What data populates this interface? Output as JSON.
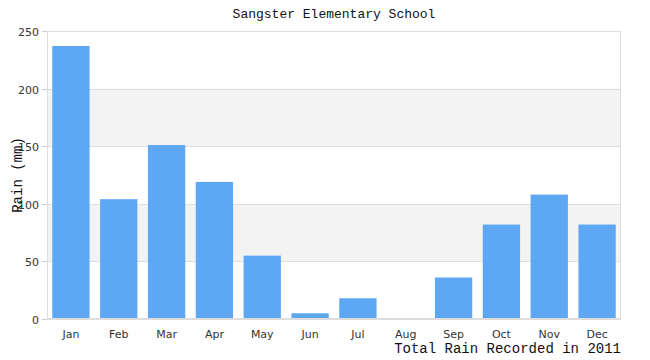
{
  "chart_data": {
    "type": "bar",
    "title": "Sangster Elementary School",
    "y_label": "Rain (mm)",
    "x_label": "Total Rain Recorded in 2011",
    "categories": [
      "Jan",
      "Feb",
      "Mar",
      "Apr",
      "May",
      "Jun",
      "Jul",
      "Aug",
      "Sep",
      "Oct",
      "Nov",
      "Dec"
    ],
    "values": [
      237,
      104,
      151,
      119,
      55,
      5,
      18,
      0,
      36,
      82,
      108,
      82
    ],
    "color": "#5ea8f3",
    "ylim": [
      0,
      250
    ],
    "yticks": [
      0,
      50,
      100,
      150,
      200,
      250
    ],
    "grid": true
  }
}
